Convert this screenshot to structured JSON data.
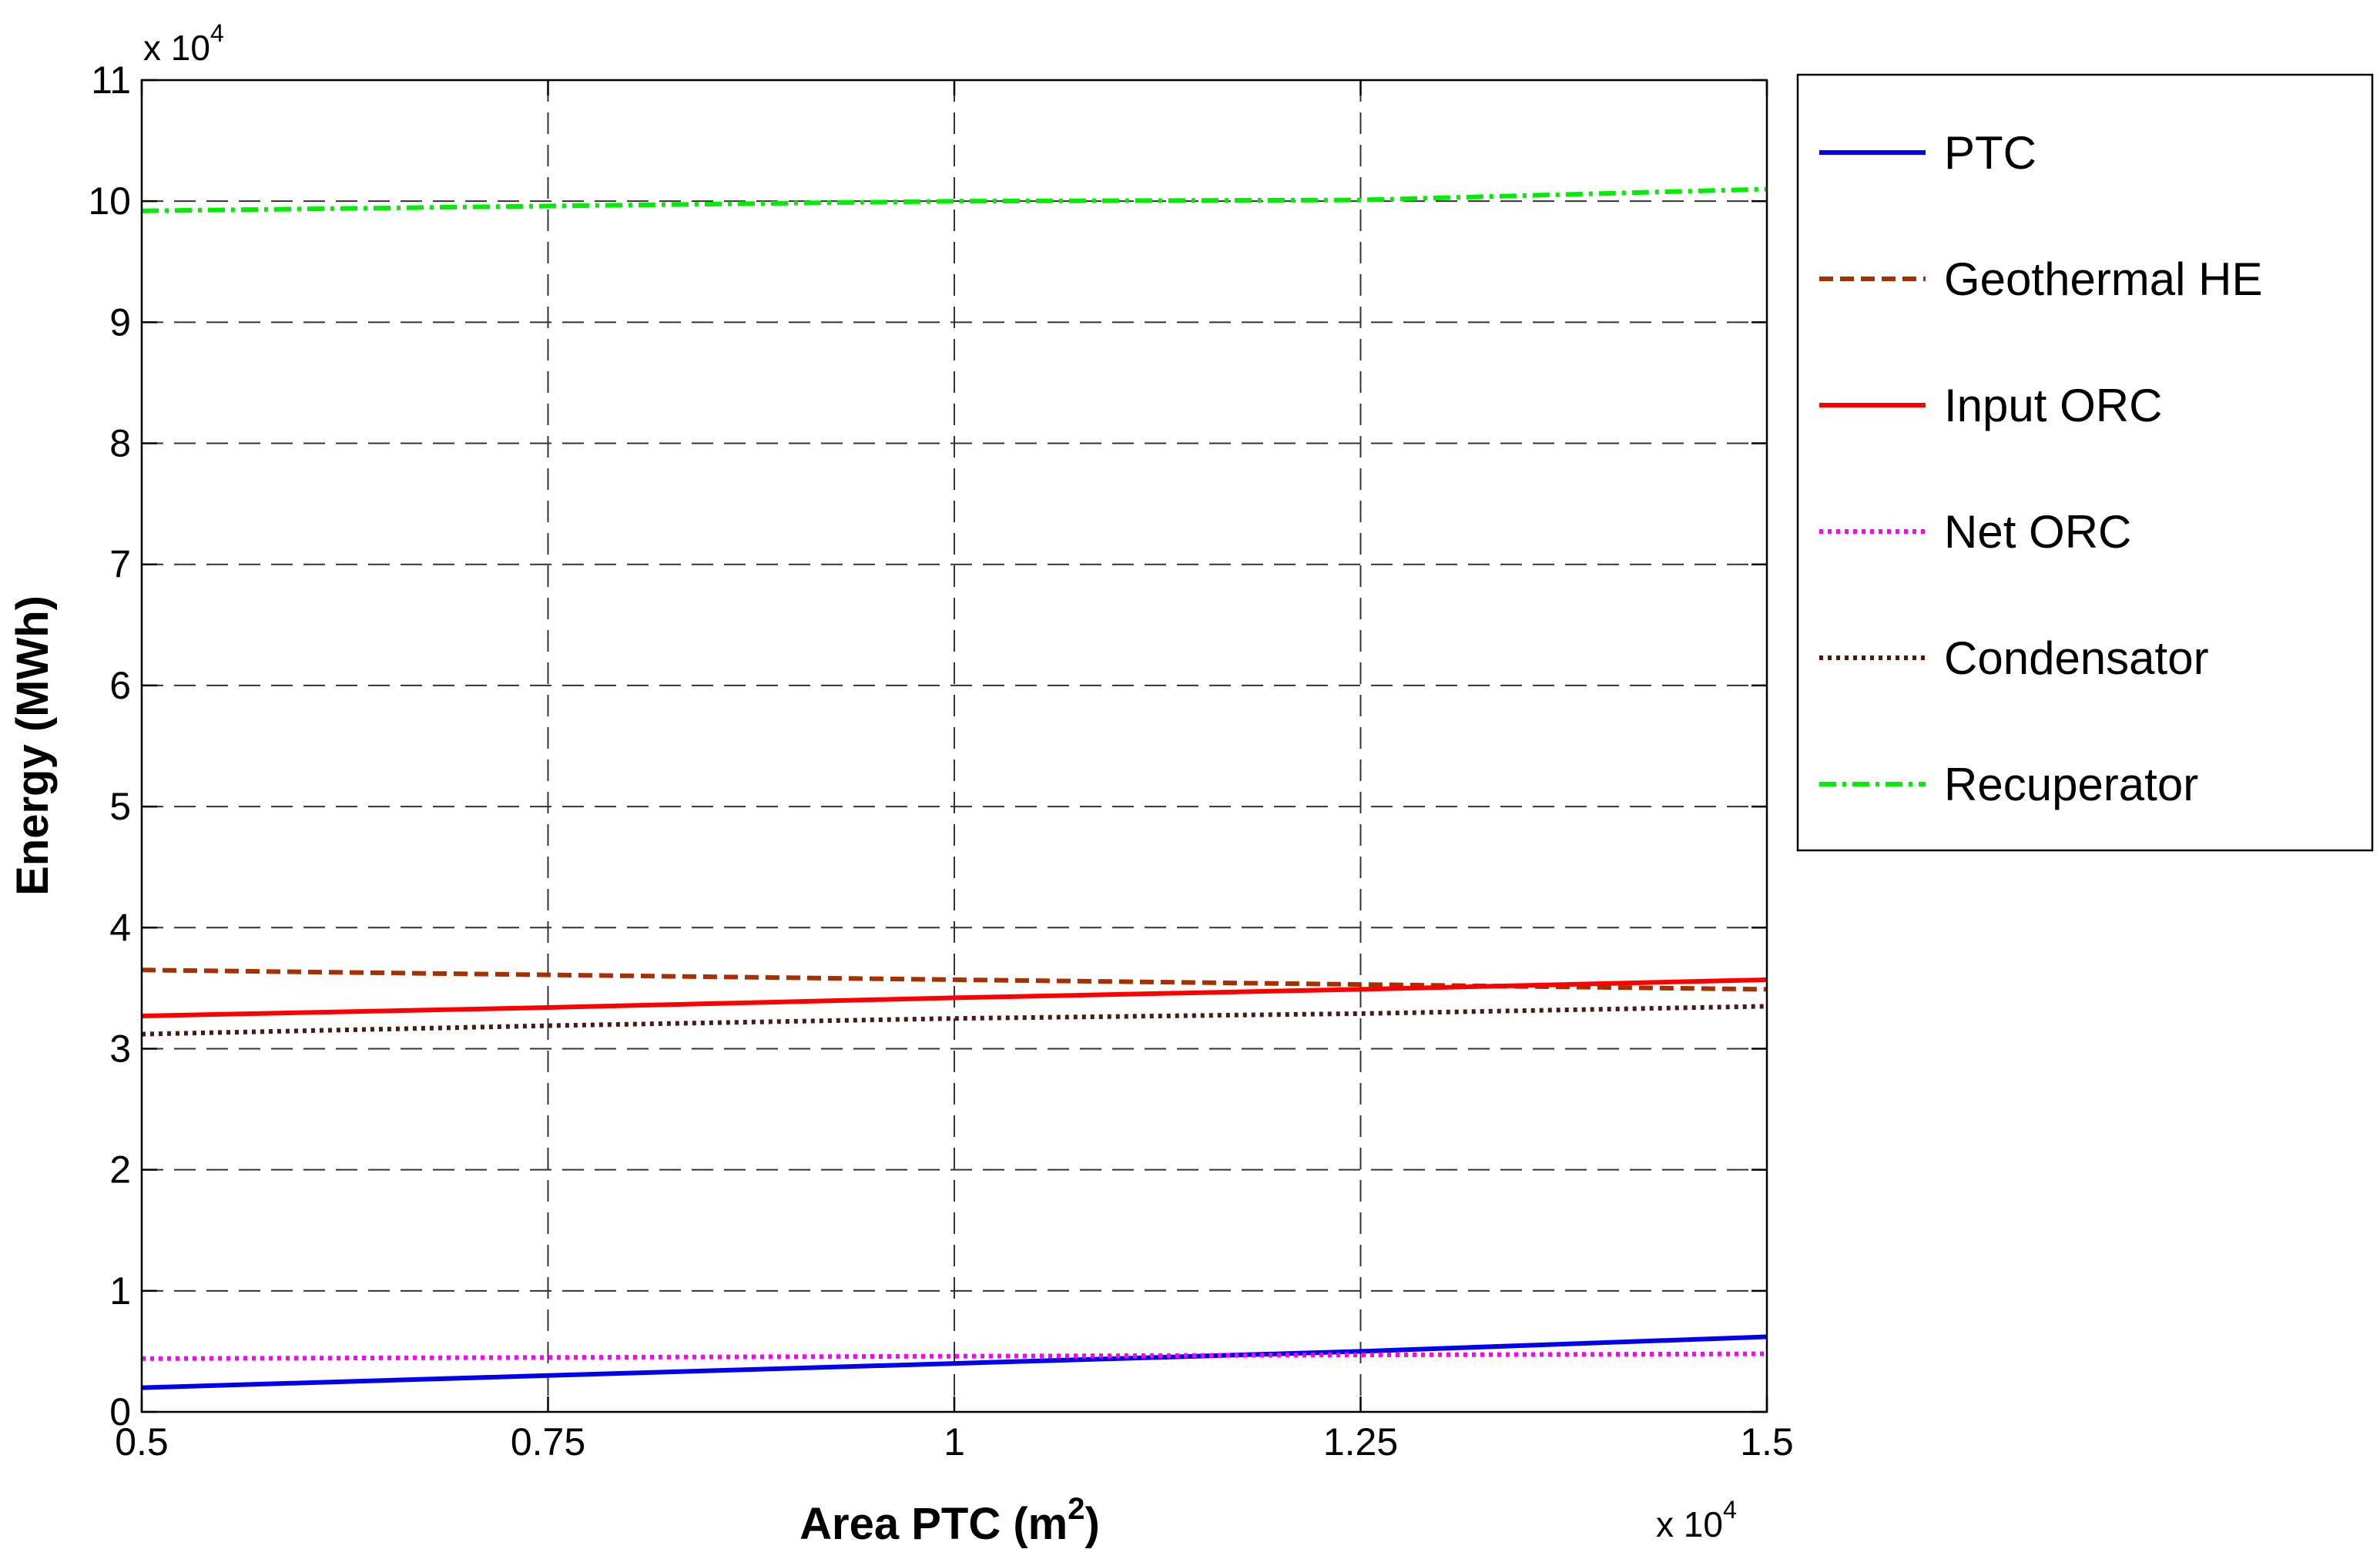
{
  "chart_data": {
    "type": "line",
    "title": "",
    "xlabel": "Area PTC (m",
    "xlabel_sup": "2",
    "xlabel_end": ")",
    "ylabel": "Energy (MWh)",
    "x_multiplier": "x 10",
    "x_multiplier_exp": "4",
    "y_multiplier": "x 10",
    "y_multiplier_exp": "4",
    "xlim": [
      0.5,
      1.5
    ],
    "ylim": [
      0,
      11
    ],
    "x_ticks": [
      0.5,
      0.75,
      1,
      1.25,
      1.5
    ],
    "x_tick_labels": [
      "0.5",
      "0.75",
      "1",
      "1.25",
      "1.5"
    ],
    "y_ticks": [
      0,
      1,
      2,
      3,
      4,
      5,
      6,
      7,
      8,
      9,
      10,
      11
    ],
    "y_tick_labels": [
      "0",
      "1",
      "2",
      "3",
      "4",
      "5",
      "6",
      "7",
      "8",
      "9",
      "10",
      "11"
    ],
    "grid": true,
    "legend_position": "outside-right-top",
    "x": [
      0.5,
      0.75,
      1.0,
      1.25,
      1.5
    ],
    "series": [
      {
        "name": "PTC",
        "color": "#0000ee",
        "dash": "solid",
        "values": [
          0.2,
          0.3,
          0.4,
          0.5,
          0.62
        ]
      },
      {
        "name": "Geothermal HE",
        "color": "#a83000",
        "dash": "dashed",
        "values": [
          3.65,
          3.61,
          3.57,
          3.53,
          3.49
        ]
      },
      {
        "name": "Input ORC",
        "color": "#ff0000",
        "dash": "solid",
        "values": [
          3.27,
          3.34,
          3.42,
          3.49,
          3.57
        ]
      },
      {
        "name": "Net ORC",
        "color": "#ff00ff",
        "dash": "dotted",
        "values": [
          0.44,
          0.45,
          0.46,
          0.47,
          0.48
        ]
      },
      {
        "name": "Condensator",
        "color": "#4a1a10",
        "dash": "dotted",
        "values": [
          3.12,
          3.19,
          3.25,
          3.29,
          3.35
        ]
      },
      {
        "name": "Recuperator",
        "color": "#00ee00",
        "dash": "dashdot",
        "values": [
          9.92,
          9.96,
          10.0,
          10.01,
          10.1
        ]
      }
    ]
  }
}
